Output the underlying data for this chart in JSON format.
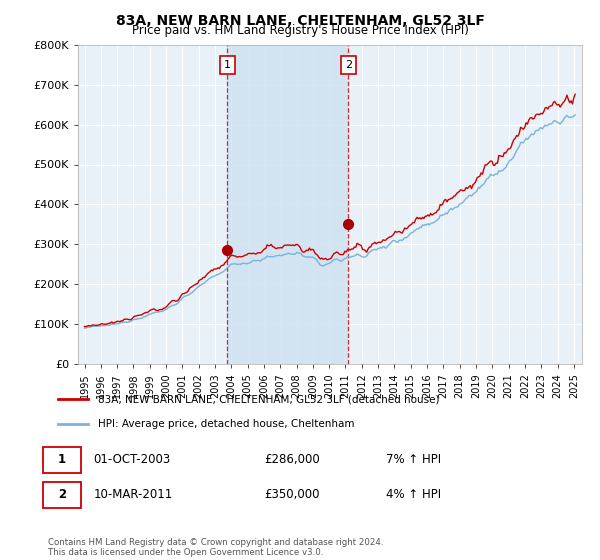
{
  "title": "83A, NEW BARN LANE, CHELTENHAM, GL52 3LF",
  "subtitle": "Price paid vs. HM Land Registry's House Price Index (HPI)",
  "ylim": [
    0,
    800000
  ],
  "sale1_year": 2003.75,
  "sale1_price": 286000,
  "sale2_year": 2011.17,
  "sale2_price": 350000,
  "legend_entry1": "83A, NEW BARN LANE, CHELTENHAM, GL52 3LF (detached house)",
  "legend_entry2": "HPI: Average price, detached house, Cheltenham",
  "footnote": "Contains HM Land Registry data © Crown copyright and database right 2024.\nThis data is licensed under the Open Government Licence v3.0.",
  "hpi_color": "#7ab4d8",
  "price_color": "#cc0000",
  "shade_color": "#cde0f0",
  "bg_color": "#e8f0f8",
  "grid_color": "#ffffff",
  "vline_color": "#cc0000",
  "marker_fill": "#aa0000"
}
